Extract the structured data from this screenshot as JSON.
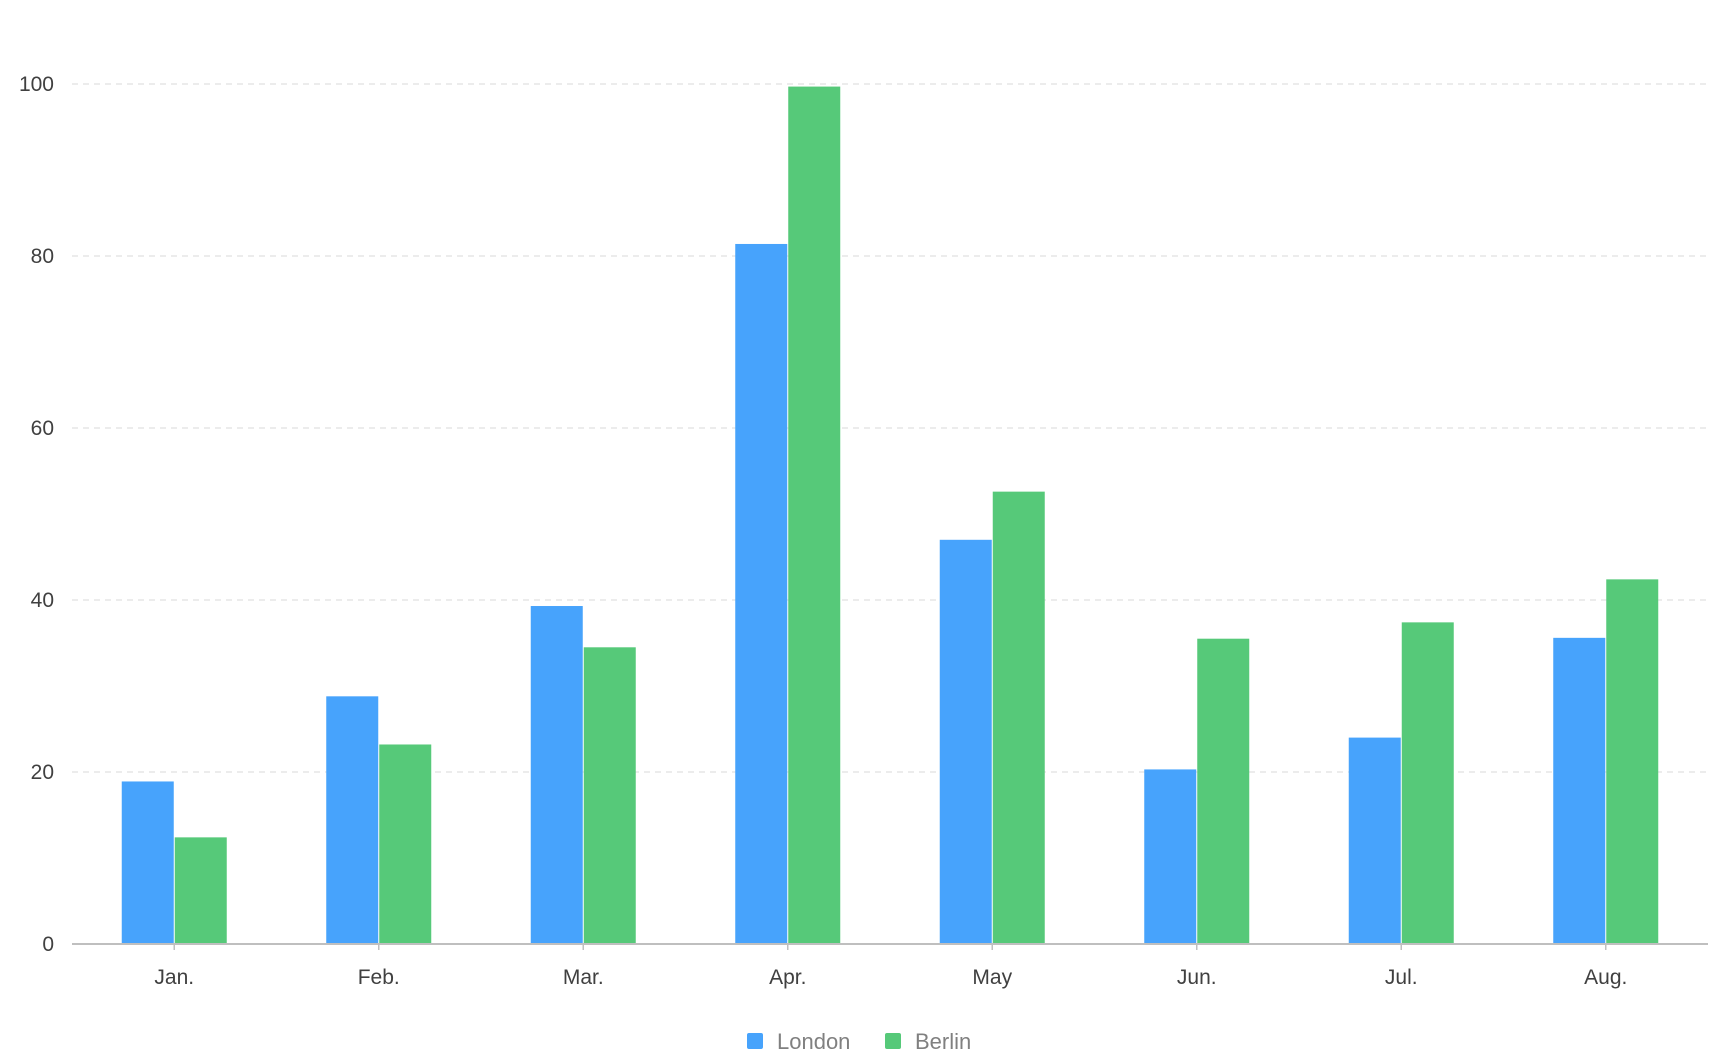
{
  "chart_data": {
    "type": "bar",
    "title": "",
    "xlabel": "",
    "ylabel": "",
    "categories": [
      "Jan.",
      "Feb.",
      "Mar.",
      "Apr.",
      "May",
      "Jun.",
      "Jul.",
      "Aug."
    ],
    "series": [
      {
        "name": "London",
        "color": "#47a3fc",
        "values": [
          18.9,
          28.8,
          39.3,
          81.4,
          47,
          20.3,
          24,
          35.6
        ]
      },
      {
        "name": "Berlin",
        "color": "#56c979",
        "values": [
          12.4,
          23.2,
          34.5,
          99.7,
          52.6,
          35.5,
          37.4,
          42.4
        ]
      }
    ],
    "ylim": [
      0,
      100
    ],
    "yticks": [
      "0",
      "20",
      "40",
      "60",
      "80",
      "100"
    ],
    "grid": true,
    "legend_position": "bottom-center"
  }
}
